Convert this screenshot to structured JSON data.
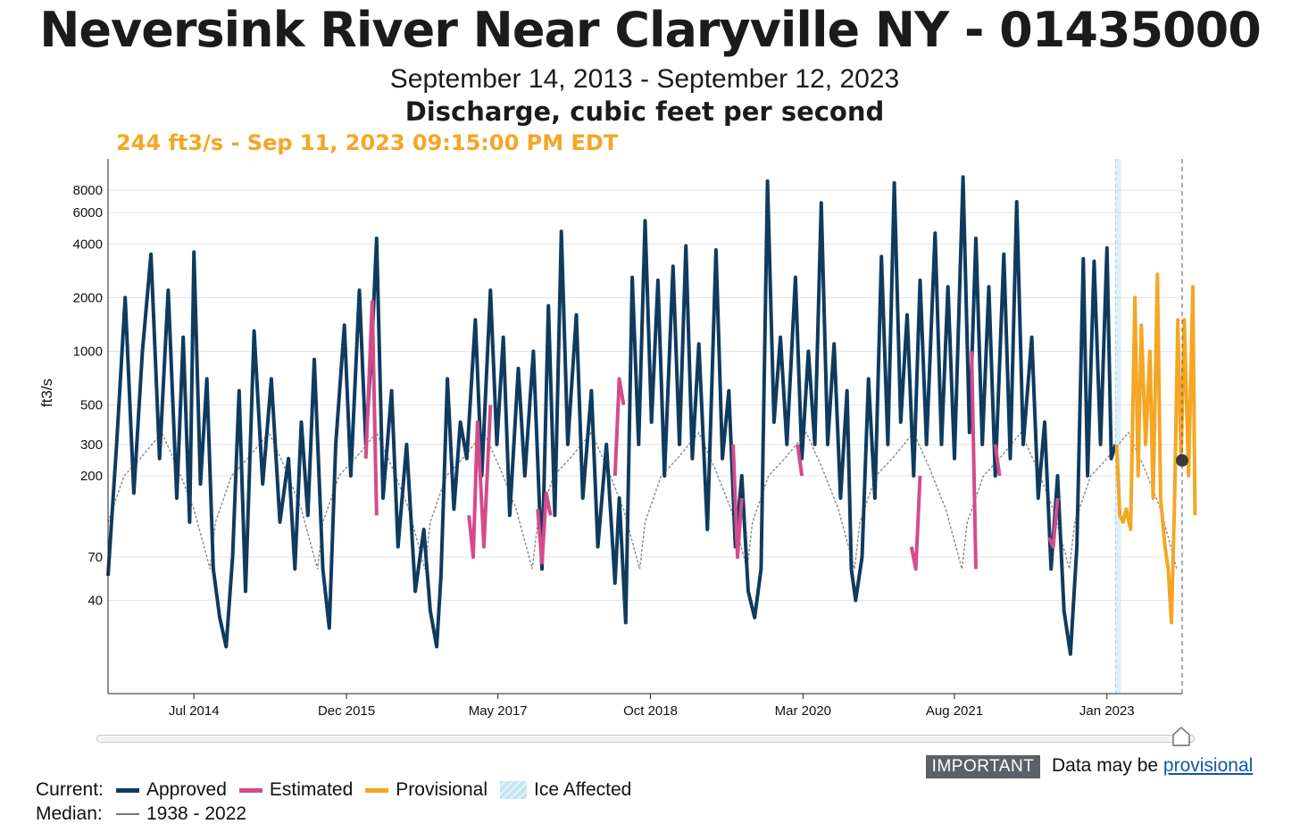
{
  "title": "Neversink River Near Claryville NY - 01435000",
  "subtitle": "September 14, 2013 - September 12, 2023",
  "parameter": "Discharge, cubic feet per second",
  "current_readout": "244 ft3/s - Sep 11, 2023 09:15:00 PM EDT",
  "important": {
    "badge": "IMPORTANT",
    "text": "Data may be ",
    "link": "provisional"
  },
  "legend": {
    "current_label": "Current:",
    "median_label": "Median:",
    "items": [
      {
        "label": "Approved",
        "color": "#0f3b5f"
      },
      {
        "label": "Estimated",
        "color": "#d44b8c"
      },
      {
        "label": "Provisional",
        "color": "#f5a623"
      },
      {
        "label": "Ice Affected",
        "color": "#bfe3f2"
      }
    ],
    "median_range": "1938 - 2022"
  },
  "colors": {
    "approved": "#0f3b5f",
    "estimated": "#d44b8c",
    "provisional": "#f5a623",
    "median": "#8a8a8a",
    "ice": "#bfe3f2",
    "current_marker": "#3a3a3a"
  },
  "chart_data": {
    "type": "line",
    "scale": "log",
    "ylabel": "ft3/s",
    "xlabel": "",
    "title": "Neversink River Near Claryville NY - 01435000",
    "x_range": [
      "2013-09-14",
      "2023-09-12"
    ],
    "ylim": [
      12,
      12000
    ],
    "y_ticks": [
      40,
      70,
      200,
      300,
      500,
      1000,
      2000,
      4000,
      6000,
      8000
    ],
    "x_ticks": [
      {
        "label": "Jul 2014",
        "year": 2014.5
      },
      {
        "label": "Dec 2015",
        "year": 2015.92
      },
      {
        "label": "May 2017",
        "year": 2017.33
      },
      {
        "label": "Oct 2018",
        "year": 2018.75
      },
      {
        "label": "Mar 2020",
        "year": 2020.17
      },
      {
        "label": "Aug 2021",
        "year": 2021.58
      },
      {
        "label": "Jan 2023",
        "year": 2023.0
      }
    ],
    "ice_affected": {
      "start": 2023.08,
      "end": 2023.13
    },
    "current_point": {
      "year": 2023.69,
      "value": 244
    },
    "provisional_start": 2023.09,
    "series": [
      {
        "name": "Approved",
        "values": [
          [
            2013.7,
            55
          ],
          [
            2013.78,
            300
          ],
          [
            2013.86,
            2000
          ],
          [
            2013.94,
            160
          ],
          [
            2014.02,
            1000
          ],
          [
            2014.1,
            3500
          ],
          [
            2014.18,
            250
          ],
          [
            2014.26,
            2200
          ],
          [
            2014.34,
            150
          ],
          [
            2014.4,
            1200
          ],
          [
            2014.46,
            110
          ],
          [
            2014.5,
            3600
          ],
          [
            2014.56,
            180
          ],
          [
            2014.62,
            700
          ],
          [
            2014.68,
            60
          ],
          [
            2014.74,
            32
          ],
          [
            2014.8,
            22
          ],
          [
            2014.86,
            70
          ],
          [
            2014.92,
            600
          ],
          [
            2014.98,
            45
          ],
          [
            2015.06,
            1300
          ],
          [
            2015.14,
            180
          ],
          [
            2015.22,
            700
          ],
          [
            2015.3,
            110
          ],
          [
            2015.38,
            250
          ],
          [
            2015.44,
            60
          ],
          [
            2015.5,
            400
          ],
          [
            2015.56,
            120
          ],
          [
            2015.62,
            900
          ],
          [
            2015.7,
            60
          ],
          [
            2015.76,
            28
          ],
          [
            2015.82,
            300
          ],
          [
            2015.9,
            1400
          ],
          [
            2015.96,
            200
          ],
          [
            2016.04,
            2200
          ],
          [
            2016.1,
            300
          ],
          [
            2016.16,
            1200
          ],
          [
            2016.2,
            4300
          ],
          [
            2016.26,
            150
          ],
          [
            2016.34,
            600
          ],
          [
            2016.4,
            80
          ],
          [
            2016.48,
            300
          ],
          [
            2016.56,
            45
          ],
          [
            2016.64,
            100
          ],
          [
            2016.7,
            35
          ],
          [
            2016.76,
            22
          ],
          [
            2016.8,
            55
          ],
          [
            2016.86,
            700
          ],
          [
            2016.92,
            130
          ],
          [
            2016.98,
            400
          ],
          [
            2017.04,
            250
          ],
          [
            2017.12,
            1500
          ],
          [
            2017.18,
            200
          ],
          [
            2017.26,
            2200
          ],
          [
            2017.32,
            300
          ],
          [
            2017.38,
            1200
          ],
          [
            2017.44,
            120
          ],
          [
            2017.52,
            800
          ],
          [
            2017.58,
            200
          ],
          [
            2017.66,
            1000
          ],
          [
            2017.74,
            60
          ],
          [
            2017.8,
            1800
          ],
          [
            2017.86,
            120
          ],
          [
            2017.92,
            4700
          ],
          [
            2017.98,
            300
          ],
          [
            2018.06,
            1600
          ],
          [
            2018.12,
            150
          ],
          [
            2018.2,
            600
          ],
          [
            2018.26,
            80
          ],
          [
            2018.34,
            300
          ],
          [
            2018.42,
            50
          ],
          [
            2018.46,
            150
          ],
          [
            2018.52,
            30
          ],
          [
            2018.58,
            2600
          ],
          [
            2018.64,
            300
          ],
          [
            2018.7,
            5400
          ],
          [
            2018.76,
            400
          ],
          [
            2018.82,
            2500
          ],
          [
            2018.88,
            200
          ],
          [
            2018.96,
            3000
          ],
          [
            2019.02,
            300
          ],
          [
            2019.08,
            3900
          ],
          [
            2019.14,
            250
          ],
          [
            2019.2,
            1100
          ],
          [
            2019.28,
            100
          ],
          [
            2019.36,
            3700
          ],
          [
            2019.42,
            250
          ],
          [
            2019.48,
            600
          ],
          [
            2019.54,
            80
          ],
          [
            2019.6,
            200
          ],
          [
            2019.66,
            45
          ],
          [
            2019.72,
            32
          ],
          [
            2019.78,
            60
          ],
          [
            2019.84,
            9000
          ],
          [
            2019.9,
            400
          ],
          [
            2019.96,
            1200
          ],
          [
            2020.02,
            300
          ],
          [
            2020.1,
            2600
          ],
          [
            2020.16,
            250
          ],
          [
            2020.22,
            1000
          ],
          [
            2020.28,
            300
          ],
          [
            2020.34,
            6800
          ],
          [
            2020.4,
            300
          ],
          [
            2020.46,
            1100
          ],
          [
            2020.52,
            150
          ],
          [
            2020.58,
            600
          ],
          [
            2020.62,
            60
          ],
          [
            2020.66,
            40
          ],
          [
            2020.72,
            70
          ],
          [
            2020.78,
            700
          ],
          [
            2020.84,
            150
          ],
          [
            2020.9,
            3400
          ],
          [
            2020.96,
            300
          ],
          [
            2021.02,
            8800
          ],
          [
            2021.08,
            400
          ],
          [
            2021.14,
            1600
          ],
          [
            2021.2,
            200
          ],
          [
            2021.26,
            2500
          ],
          [
            2021.32,
            300
          ],
          [
            2021.4,
            4600
          ],
          [
            2021.46,
            300
          ],
          [
            2021.52,
            2300
          ],
          [
            2021.58,
            250
          ],
          [
            2021.66,
            9500
          ],
          [
            2021.72,
            350
          ],
          [
            2021.78,
            4300
          ],
          [
            2021.84,
            300
          ],
          [
            2021.9,
            2300
          ],
          [
            2021.96,
            200
          ],
          [
            2022.04,
            3500
          ],
          [
            2022.1,
            250
          ],
          [
            2022.16,
            6900
          ],
          [
            2022.22,
            300
          ],
          [
            2022.3,
            1200
          ],
          [
            2022.36,
            150
          ],
          [
            2022.42,
            400
          ],
          [
            2022.48,
            60
          ],
          [
            2022.54,
            200
          ],
          [
            2022.6,
            35
          ],
          [
            2022.66,
            20
          ],
          [
            2022.72,
            80
          ],
          [
            2022.78,
            3300
          ],
          [
            2022.82,
            200
          ],
          [
            2022.88,
            3200
          ],
          [
            2022.94,
            300
          ],
          [
            2023.0,
            3800
          ],
          [
            2023.04,
            250
          ],
          [
            2023.08,
            300
          ]
        ]
      },
      {
        "name": "Estimated",
        "segments": [
          [
            [
              2016.1,
              250
            ],
            [
              2016.16,
              1900
            ],
            [
              2016.2,
              120
            ]
          ],
          [
            [
              2017.06,
              120
            ],
            [
              2017.1,
              70
            ],
            [
              2017.14,
              400
            ],
            [
              2017.2,
              80
            ],
            [
              2017.26,
              500
            ]
          ],
          [
            [
              2017.7,
              130
            ],
            [
              2017.74,
              65
            ],
            [
              2017.78,
              160
            ],
            [
              2017.82,
              120
            ]
          ],
          [
            [
              2018.42,
              200
            ],
            [
              2018.46,
              700
            ],
            [
              2018.5,
              500
            ]
          ],
          [
            [
              2019.52,
              300
            ],
            [
              2019.56,
              70
            ],
            [
              2019.6,
              150
            ]
          ],
          [
            [
              2020.12,
              300
            ],
            [
              2020.16,
              200
            ]
          ],
          [
            [
              2021.18,
              80
            ],
            [
              2021.22,
              60
            ],
            [
              2021.26,
              200
            ]
          ],
          [
            [
              2021.74,
              1000
            ],
            [
              2021.78,
              60
            ]
          ],
          [
            [
              2021.96,
              300
            ],
            [
              2022.0,
              200
            ]
          ],
          [
            [
              2022.46,
              90
            ],
            [
              2022.5,
              80
            ],
            [
              2022.54,
              150
            ]
          ]
        ]
      },
      {
        "name": "Provisional",
        "values": [
          [
            2023.09,
            300
          ],
          [
            2023.12,
            120
          ],
          [
            2023.15,
            110
          ],
          [
            2023.18,
            130
          ],
          [
            2023.22,
            100
          ],
          [
            2023.26,
            2000
          ],
          [
            2023.29,
            200
          ],
          [
            2023.32,
            1400
          ],
          [
            2023.36,
            300
          ],
          [
            2023.4,
            1000
          ],
          [
            2023.43,
            150
          ],
          [
            2023.47,
            2700
          ],
          [
            2023.5,
            150
          ],
          [
            2023.54,
            80
          ],
          [
            2023.57,
            60
          ],
          [
            2023.6,
            30
          ],
          [
            2023.63,
            150
          ],
          [
            2023.66,
            1500
          ],
          [
            2023.69,
            244
          ],
          [
            2023.72,
            1500
          ],
          [
            2023.76,
            200
          ],
          [
            2023.8,
            2300
          ],
          [
            2023.82,
            120
          ]
        ]
      },
      {
        "name": "Median 1938 - 2022",
        "values": [
          [
            2013.7,
            110
          ],
          [
            2013.85,
            200
          ],
          [
            2014.0,
            250
          ],
          [
            2014.2,
            350
          ],
          [
            2014.35,
            220
          ],
          [
            2014.5,
            130
          ],
          [
            2014.65,
            60
          ],
          [
            2014.75,
            45
          ],
          [
            2014.9,
            100
          ],
          [
            2015.1,
            230
          ],
          [
            2015.3,
            330
          ],
          [
            2015.45,
            200
          ],
          [
            2015.6,
            110
          ],
          [
            2015.7,
            55
          ],
          [
            2015.8,
            45
          ],
          [
            2015.95,
            110
          ]
        ],
        "cycle_years": 1.0
      }
    ]
  }
}
